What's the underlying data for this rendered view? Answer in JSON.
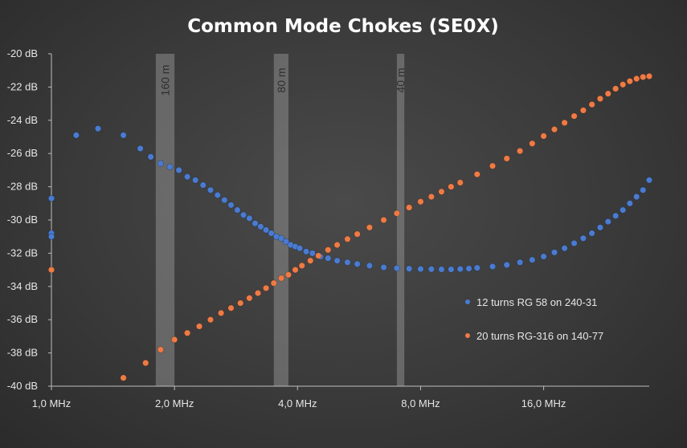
{
  "chart_data": {
    "type": "scatter",
    "title": "Common Mode Chokes (SE0X)",
    "xscale": "log2",
    "xlim": [
      1.0,
      29.0
    ],
    "ylim": [
      -40,
      -20
    ],
    "xticks": [
      {
        "value": 1,
        "label": "1,0 MHz"
      },
      {
        "value": 2,
        "label": "2,0 MHz"
      },
      {
        "value": 4,
        "label": "4,0 MHz"
      },
      {
        "value": 8,
        "label": "8,0 MHz"
      },
      {
        "value": 16,
        "label": "16,0 MHz"
      }
    ],
    "yticks": [
      {
        "value": -20,
        "label": "-20 dB"
      },
      {
        "value": -22,
        "label": "-22 dB"
      },
      {
        "value": -24,
        "label": "-24 dB"
      },
      {
        "value": -26,
        "label": "-26 dB"
      },
      {
        "value": -28,
        "label": "-28 dB"
      },
      {
        "value": -30,
        "label": "-30 dB"
      },
      {
        "value": -32,
        "label": "-32 dB"
      },
      {
        "value": -34,
        "label": "-34 dB"
      },
      {
        "value": -36,
        "label": "-36 dB"
      },
      {
        "value": -38,
        "label": "-38 dB"
      },
      {
        "value": -40,
        "label": "-40 dB"
      }
    ],
    "grid": false,
    "legend_position": "right",
    "bands": [
      {
        "label": "160 m",
        "from": 1.8,
        "to": 2.0
      },
      {
        "label": "80 m",
        "from": 3.5,
        "to": 3.8
      },
      {
        "label": "40 m",
        "from": 7.0,
        "to": 7.3
      }
    ],
    "series": [
      {
        "name": "12 turns RG 58 on 240-31",
        "color": "#4a7bd0",
        "points": [
          [
            1.0,
            -28.7
          ],
          [
            1.0,
            -30.8
          ],
          [
            1.0,
            -31.0
          ],
          [
            1.15,
            -24.9
          ],
          [
            1.3,
            -24.5
          ],
          [
            1.5,
            -24.9
          ],
          [
            1.65,
            -25.7
          ],
          [
            1.75,
            -26.2
          ],
          [
            1.85,
            -26.6
          ],
          [
            1.95,
            -26.8
          ],
          [
            2.05,
            -27.0
          ],
          [
            2.15,
            -27.4
          ],
          [
            2.25,
            -27.6
          ],
          [
            2.35,
            -27.9
          ],
          [
            2.45,
            -28.2
          ],
          [
            2.55,
            -28.5
          ],
          [
            2.65,
            -28.8
          ],
          [
            2.75,
            -29.1
          ],
          [
            2.85,
            -29.4
          ],
          [
            2.95,
            -29.7
          ],
          [
            3.05,
            -29.9
          ],
          [
            3.15,
            -30.2
          ],
          [
            3.25,
            -30.4
          ],
          [
            3.35,
            -30.6
          ],
          [
            3.45,
            -30.8
          ],
          [
            3.55,
            -31.0
          ],
          [
            3.65,
            -31.1
          ],
          [
            3.75,
            -31.3
          ],
          [
            3.85,
            -31.5
          ],
          [
            3.95,
            -31.6
          ],
          [
            4.05,
            -31.7
          ],
          [
            4.2,
            -31.9
          ],
          [
            4.35,
            -32.0
          ],
          [
            4.55,
            -32.2
          ],
          [
            4.75,
            -32.3
          ],
          [
            5.0,
            -32.45
          ],
          [
            5.3,
            -32.55
          ],
          [
            5.6,
            -32.65
          ],
          [
            6.0,
            -32.75
          ],
          [
            6.5,
            -32.85
          ],
          [
            7.0,
            -32.9
          ],
          [
            7.5,
            -32.93
          ],
          [
            8.0,
            -32.95
          ],
          [
            8.5,
            -32.96
          ],
          [
            9.0,
            -32.97
          ],
          [
            9.5,
            -32.97
          ],
          [
            10.0,
            -32.95
          ],
          [
            10.5,
            -32.92
          ],
          [
            11.0,
            -32.88
          ],
          [
            12.0,
            -32.8
          ],
          [
            13.0,
            -32.7
          ],
          [
            14.0,
            -32.55
          ],
          [
            15.0,
            -32.4
          ],
          [
            16.0,
            -32.2
          ],
          [
            17.0,
            -31.95
          ],
          [
            18.0,
            -31.7
          ],
          [
            19.0,
            -31.4
          ],
          [
            20.0,
            -31.1
          ],
          [
            21.0,
            -30.8
          ],
          [
            22.0,
            -30.45
          ],
          [
            23.0,
            -30.1
          ],
          [
            24.0,
            -29.75
          ],
          [
            25.0,
            -29.4
          ],
          [
            26.0,
            -29.0
          ],
          [
            27.0,
            -28.6
          ],
          [
            28.0,
            -28.2
          ],
          [
            29.0,
            -27.6
          ]
        ]
      },
      {
        "name": "20 turns RG-316 on 140-77",
        "color": "#ee7a45",
        "points": [
          [
            1.0,
            -33.0
          ],
          [
            1.5,
            -39.5
          ],
          [
            1.7,
            -38.6
          ],
          [
            1.85,
            -37.8
          ],
          [
            2.0,
            -37.2
          ],
          [
            2.15,
            -36.8
          ],
          [
            2.3,
            -36.4
          ],
          [
            2.45,
            -36.0
          ],
          [
            2.6,
            -35.6
          ],
          [
            2.75,
            -35.3
          ],
          [
            2.9,
            -35.0
          ],
          [
            3.05,
            -34.7
          ],
          [
            3.2,
            -34.4
          ],
          [
            3.35,
            -34.1
          ],
          [
            3.5,
            -33.8
          ],
          [
            3.65,
            -33.5
          ],
          [
            3.8,
            -33.3
          ],
          [
            3.95,
            -33.0
          ],
          [
            4.1,
            -32.75
          ],
          [
            4.3,
            -32.45
          ],
          [
            4.5,
            -32.15
          ],
          [
            4.75,
            -31.8
          ],
          [
            5.0,
            -31.5
          ],
          [
            5.3,
            -31.15
          ],
          [
            5.6,
            -30.85
          ],
          [
            6.0,
            -30.45
          ],
          [
            6.5,
            -30.0
          ],
          [
            7.0,
            -29.6
          ],
          [
            7.5,
            -29.25
          ],
          [
            8.0,
            -28.9
          ],
          [
            8.5,
            -28.6
          ],
          [
            9.0,
            -28.3
          ],
          [
            9.5,
            -28.0
          ],
          [
            10.0,
            -27.75
          ],
          [
            11.0,
            -27.25
          ],
          [
            12.0,
            -26.75
          ],
          [
            13.0,
            -26.3
          ],
          [
            14.0,
            -25.85
          ],
          [
            15.0,
            -25.4
          ],
          [
            16.0,
            -24.95
          ],
          [
            17.0,
            -24.55
          ],
          [
            18.0,
            -24.15
          ],
          [
            19.0,
            -23.75
          ],
          [
            20.0,
            -23.4
          ],
          [
            21.0,
            -23.05
          ],
          [
            22.0,
            -22.7
          ],
          [
            23.0,
            -22.4
          ],
          [
            24.0,
            -22.1
          ],
          [
            25.0,
            -21.85
          ],
          [
            26.0,
            -21.65
          ],
          [
            27.0,
            -21.5
          ],
          [
            28.0,
            -21.4
          ],
          [
            29.0,
            -21.35
          ]
        ]
      }
    ]
  }
}
